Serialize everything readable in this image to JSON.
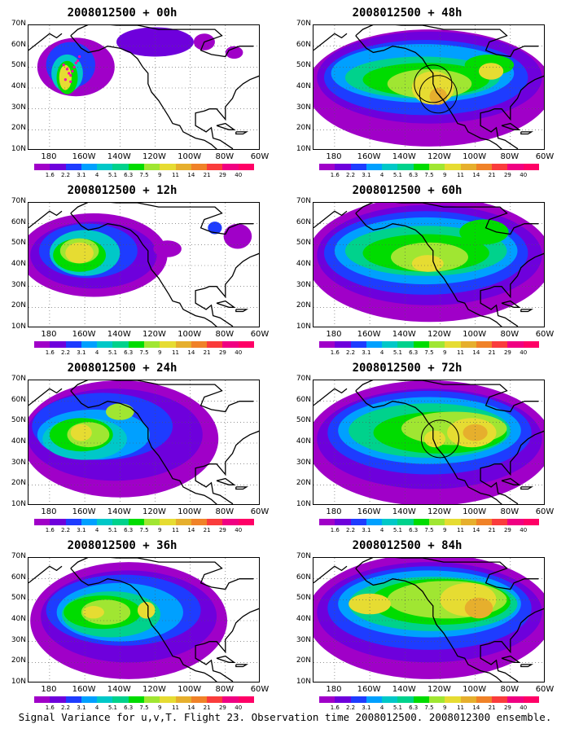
{
  "y_labels": [
    "70N",
    "60N",
    "50N",
    "40N",
    "30N",
    "20N",
    "10N"
  ],
  "x_labels": [
    "180",
    "160W",
    "140W",
    "120W",
    "100W",
    "80W",
    "60W"
  ],
  "colorbar": {
    "colors": [
      "#a000c8",
      "#6e00dc",
      "#1e3cff",
      "#00a0ff",
      "#00c8c8",
      "#00d28c",
      "#00dc00",
      "#a0e632",
      "#e6dc32",
      "#e6af2d",
      "#f08228",
      "#fa3c3c",
      "#f00082"
    ],
    "labels": [
      "1.6",
      "2.2",
      "3.1",
      "4",
      "5.1",
      "6.3",
      "7.5",
      "9",
      "11",
      "14",
      "21",
      "29",
      "40"
    ]
  },
  "panels": [
    {
      "title": "2008012500 + 00h",
      "col": 0,
      "row": 0
    },
    {
      "title": "2008012500 + 48h",
      "col": 1,
      "row": 0
    },
    {
      "title": "2008012500 + 12h",
      "col": 0,
      "row": 1
    },
    {
      "title": "2008012500 + 60h",
      "col": 1,
      "row": 1
    },
    {
      "title": "2008012500 + 24h",
      "col": 0,
      "row": 2
    },
    {
      "title": "2008012500 + 72h",
      "col": 1,
      "row": 2
    },
    {
      "title": "2008012500 + 36h",
      "col": 0,
      "row": 3
    },
    {
      "title": "2008012500 + 84h",
      "col": 1,
      "row": 3
    }
  ],
  "caption": "Signal Variance for u,v,T. Flight 23. Observation time 2008012500. 2008012300 ensemble."
}
